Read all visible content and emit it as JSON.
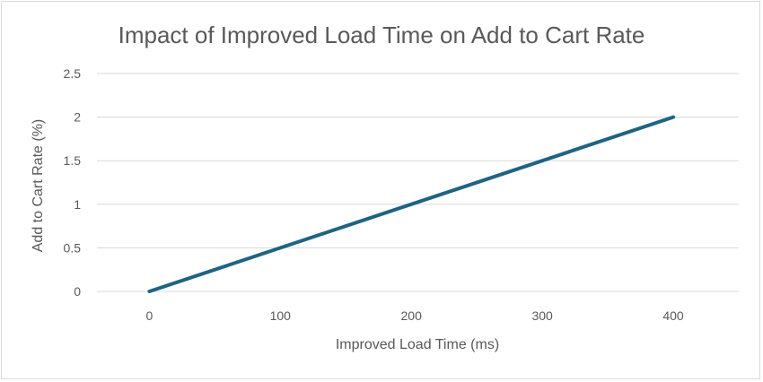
{
  "chart_data": {
    "type": "scatter",
    "title": "Impact of Improved Load Time on Add to Cart Rate",
    "xlabel": "Improved Load Time (ms)",
    "ylabel": "Add to Cart Rate (%)",
    "xlim": [
      -40,
      450
    ],
    "ylim": [
      0,
      2.5
    ],
    "x_ticks": [
      "0",
      "100",
      "200",
      "300",
      "400"
    ],
    "y_ticks": [
      "0",
      "0.5",
      "1",
      "1.5",
      "2",
      "2.5"
    ],
    "grid": true,
    "legend": "none",
    "series": [
      {
        "name": "Add to Cart Rate",
        "color": "#1f6384",
        "x": [
          0,
          400
        ],
        "y": [
          0,
          2
        ]
      }
    ]
  }
}
